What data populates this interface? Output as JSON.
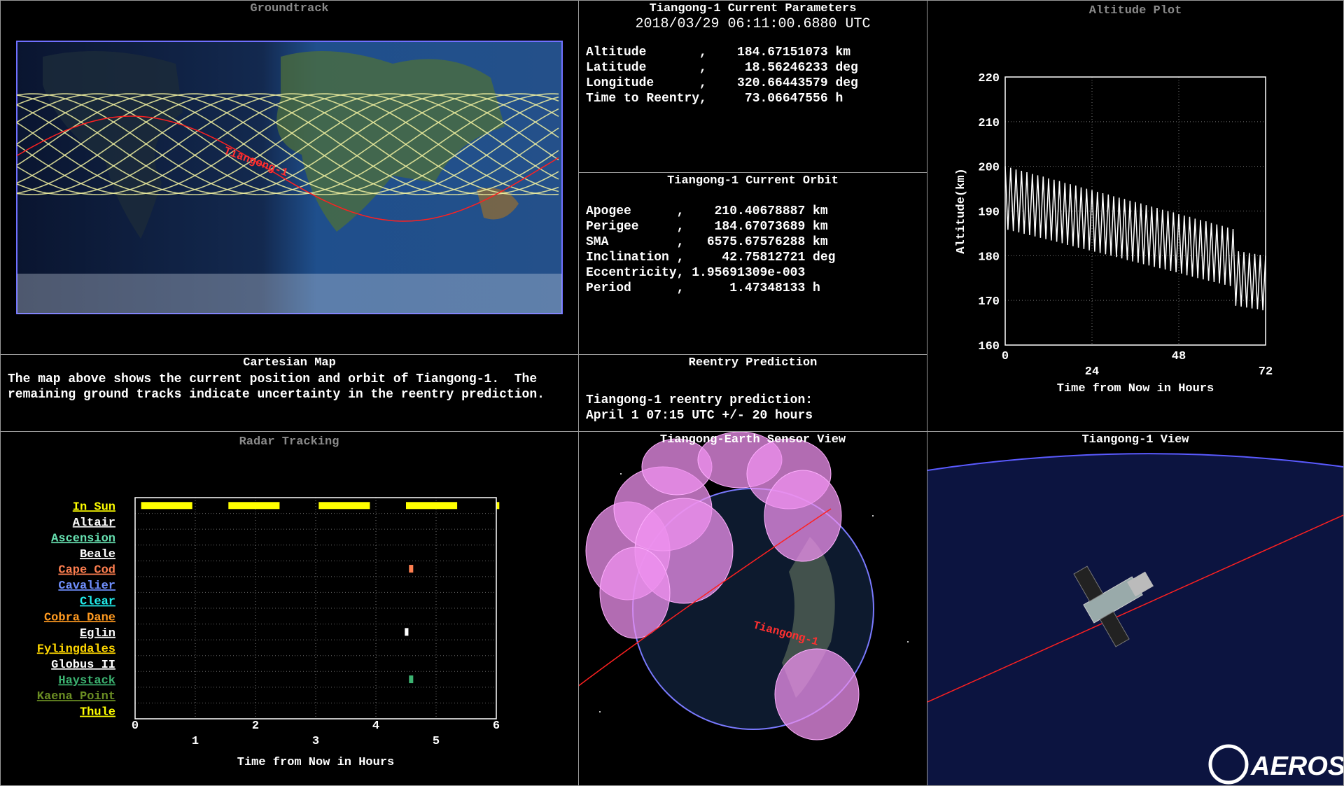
{
  "groundtrack": {
    "title": "Groundtrack",
    "track_label": "Tiangong-1"
  },
  "current_parameters": {
    "title": "Tiangong-1 Current Parameters",
    "epoch": "2018/03/29 06:11:00.6880 UTC",
    "lines": [
      "Altitude       ,    184.67151073 km",
      "Latitude       ,     18.56246233 deg",
      "Longitude      ,    320.66443579 deg",
      "Time to Reentry,     73.06647556 h"
    ]
  },
  "current_orbit": {
    "title": "Tiangong-1 Current Orbit",
    "lines": [
      "Apogee      ,    210.40678887 km",
      "Perigee     ,    184.67073689 km",
      "SMA         ,   6575.67576288 km",
      "Inclination ,     42.75812721 deg",
      "Eccentricity, 1.95691309e-003",
      "Period      ,      1.47348133 h"
    ]
  },
  "cartesian_map": {
    "title": "Cartesian Map",
    "lines": [
      "The map above shows the current position and orbit of Tiangong-1.  The",
      "remaining ground tracks indicate uncertainty in the reentry prediction."
    ]
  },
  "reentry_prediction": {
    "title": "Reentry Prediction",
    "lines": [
      "Tiangong-1 reentry prediction:",
      "April 1 07:15 UTC +/- 20 hours"
    ]
  },
  "sensor_view": {
    "title": "Tiangong-Earth Sensor View",
    "track_label": "Tiangong-1"
  },
  "tiangong_view": {
    "title": "Tiangong-1 View"
  },
  "logo": "AEROSPACE",
  "chart_data": [
    {
      "type": "line",
      "title": "Altitude Plot",
      "xlabel": "Time from Now in Hours",
      "ylabel": "Altitude(km)",
      "color": "#ffffff",
      "grid": true,
      "xlim": [
        0,
        72
      ],
      "xticks": [
        0,
        24,
        48,
        72
      ],
      "ylim": [
        160,
        220
      ],
      "yticks": [
        160,
        170,
        180,
        190,
        200,
        210,
        220
      ],
      "x": [
        0,
        0.75,
        1.5,
        2.25,
        3,
        3.75,
        4.5,
        5.25,
        6,
        6.75,
        7.5,
        8.25,
        9,
        9.75,
        10.5,
        11.25,
        12,
        12.75,
        13.5,
        14.25,
        15,
        15.75,
        16.5,
        17.25,
        18,
        18.75,
        19.5,
        20.25,
        21,
        21.75,
        22.5,
        23.25,
        24,
        24.75,
        25.5,
        26.25,
        27,
        27.75,
        28.5,
        29.25,
        30,
        30.75,
        31.5,
        32.25,
        33,
        33.75,
        34.5,
        35.25,
        36,
        36.75,
        37.5,
        38.25,
        39,
        39.75,
        40.5,
        41.25,
        42,
        42.75,
        43.5,
        44.25,
        45,
        45.75,
        46.5,
        47.25,
        48,
        48.75,
        49.5,
        50.25,
        51,
        51.75,
        52.5,
        53.25,
        54,
        54.75,
        55.5,
        56.25,
        57,
        57.75,
        58.5,
        59.25,
        60,
        60.75,
        61.5,
        62.25,
        63,
        63.75,
        64.5,
        65.25,
        66,
        66.75,
        67.5,
        68.25,
        69,
        69.75,
        70.5,
        71.25,
        72
      ],
      "values": [
        200,
        185.8,
        199.7,
        185.5,
        199.3,
        185.2,
        199.0,
        184.9,
        198.7,
        184.6,
        198.3,
        184.3,
        198.0,
        184.0,
        197.7,
        183.7,
        197.3,
        183.4,
        197.0,
        183.1,
        196.7,
        182.8,
        196.3,
        182.4,
        196.0,
        182.1,
        195.7,
        181.8,
        195.3,
        181.5,
        195.0,
        181.2,
        194.7,
        180.9,
        194.3,
        180.6,
        194.0,
        180.3,
        193.7,
        180.0,
        193.3,
        179.7,
        193.0,
        179.4,
        192.7,
        179.0,
        192.3,
        178.7,
        192.0,
        178.4,
        191.7,
        178.1,
        191.3,
        177.8,
        191.0,
        177.5,
        190.7,
        177.2,
        190.3,
        176.9,
        190.0,
        176.6,
        189.7,
        176.3,
        189.3,
        176.0,
        189.0,
        175.6,
        188.7,
        175.3,
        188.3,
        175.0,
        188.0,
        174.7,
        187.7,
        174.4,
        187.3,
        174.1,
        187.0,
        173.8,
        186.7,
        173.5,
        186.3,
        173.2,
        186.0,
        168.8,
        181.0,
        168.6,
        180.8,
        168.4,
        180.6,
        168.2,
        180.4,
        168.0,
        180.2,
        167.8,
        180.0
      ]
    },
    {
      "type": "timeline",
      "title": "Radar Tracking",
      "xlabel": "Time from Now in Hours",
      "grid": true,
      "xlim": [
        0,
        6
      ],
      "xticks": [
        0,
        1,
        2,
        3,
        4,
        5,
        6
      ],
      "series": [
        {
          "name": "In Sun",
          "color": "#ffff00",
          "values": [
            [
              0.1,
              0.95
            ],
            [
              1.55,
              2.4
            ],
            [
              3.05,
              3.9
            ],
            [
              4.5,
              5.35
            ],
            [
              6.0,
              6.05
            ]
          ]
        },
        {
          "name": "Altair",
          "color": "#ffffff",
          "values": []
        },
        {
          "name": "Ascension",
          "color": "#66e0b0",
          "values": []
        },
        {
          "name": "Beale",
          "color": "#ffffff",
          "values": []
        },
        {
          "name": "Cape Cod",
          "color": "#ff7f50",
          "values": [
            [
              4.55,
              4.62
            ]
          ]
        },
        {
          "name": "Cavalier",
          "color": "#7090ff",
          "values": []
        },
        {
          "name": "Clear",
          "color": "#22eeee",
          "values": []
        },
        {
          "name": "Cobra Dane",
          "color": "#ff9a20",
          "values": []
        },
        {
          "name": "Eglin",
          "color": "#ffffff",
          "values": [
            [
              4.48,
              4.54
            ]
          ]
        },
        {
          "name": "Fylingdales",
          "color": "#ffd700",
          "values": []
        },
        {
          "name": "Globus II",
          "color": "#ffffff",
          "values": []
        },
        {
          "name": "Haystack",
          "color": "#3cb371",
          "values": [
            [
              4.55,
              4.62
            ]
          ]
        },
        {
          "name": "Kaena Point",
          "color": "#6b8e23",
          "values": []
        },
        {
          "name": "Thule",
          "color": "#ffff00",
          "values": []
        }
      ]
    }
  ]
}
